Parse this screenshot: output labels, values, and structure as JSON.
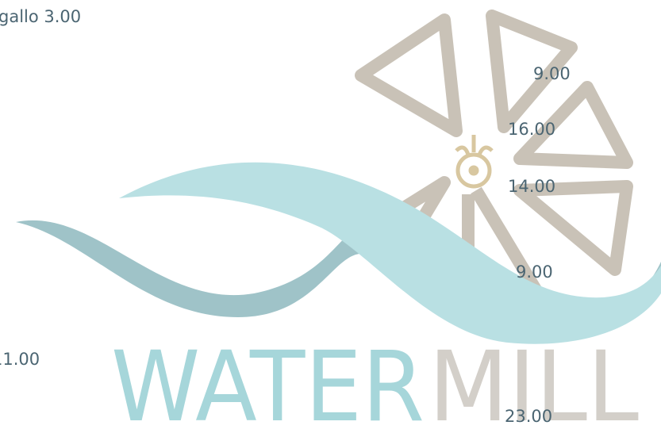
{
  "labels": [
    "gallo 3.00",
    "9.00",
    "16.00",
    "14.00",
    "9.00",
    "11.00",
    "23.00"
  ],
  "logo": {
    "word_1": "WATER",
    "word_2": "MILL"
  }
}
